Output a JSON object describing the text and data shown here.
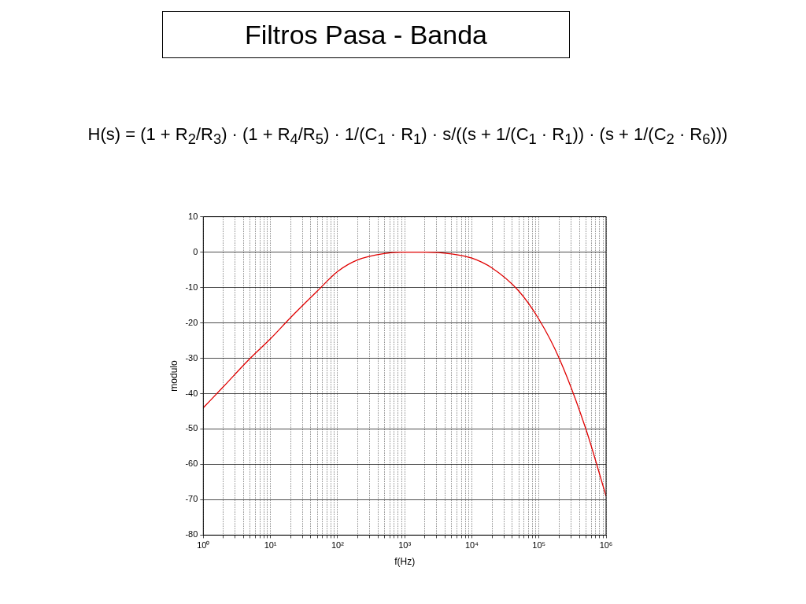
{
  "chart_data": {
    "type": "line",
    "title": "Filtros Pasa - Banda",
    "annotations": [
      "H(s) = (1 + R$_{2}$/R$_{3}$) · (1 + R$_{4}$/R$_{5}$) · 1/(C$_{1}$ · R$_{1}$) · s/((s + 1/(C$_{1}$ · R$_{1}$)) · (s + 1/(C$_{2}$ · R$_{6}$)))"
    ],
    "xlabel": "f(Hz)",
    "ylabel": "modulo",
    "series": [
      {
        "color": "#e00000",
        "x": [
          1,
          2,
          5,
          10,
          20,
          50,
          100,
          200,
          500,
          1000,
          2000,
          5000,
          10000,
          20000,
          50000,
          100000,
          200000,
          500000,
          1000000
        ],
        "values": [
          -44,
          -38,
          -30,
          -24.5,
          -18.5,
          -11,
          -5.5,
          -2.2,
          -0.4,
          0,
          0,
          -0.5,
          -1.7,
          -4.5,
          -11,
          -19,
          -30,
          -50,
          -69
        ]
      }
    ],
    "log": "x",
    "xlim": [
      1,
      1000000
    ],
    "xticks": [
      {
        "value": 1,
        "label": "10⁰"
      },
      {
        "value": 10,
        "label": "10¹"
      },
      {
        "value": 100,
        "label": "10²"
      },
      {
        "value": 1000,
        "label": "10³"
      },
      {
        "value": 10000,
        "label": "10⁴"
      },
      {
        "value": 100000,
        "label": "10⁵"
      },
      {
        "value": 1000000,
        "label": "10⁶"
      }
    ],
    "ylim": [
      -80,
      10
    ],
    "yticks": [
      -80,
      -70,
      -60,
      -50,
      -40,
      -30,
      -20,
      -10,
      0,
      10
    ],
    "grid": true,
    "line_style": "solid",
    "marker": "none",
    "legend": false
  }
}
